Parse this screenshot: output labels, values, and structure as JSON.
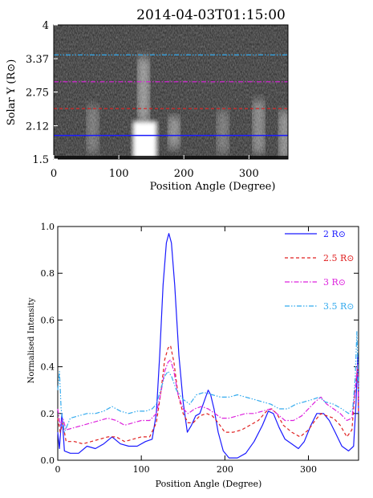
{
  "chart_data": [
    {
      "type": "heatmap",
      "title": "2014-04-03T01:15:00",
      "xlabel": "Position Angle (Degree)",
      "ylabel": "Solar Y (R⊙)",
      "xlim": [
        0,
        360
      ],
      "ylim": [
        1.5,
        4.0
      ],
      "xticks": [
        "0",
        "100",
        "200",
        "300"
      ],
      "yticks": [
        "1.5",
        "2.12",
        "2.75",
        "3.37",
        "4"
      ],
      "colormap": "grayscale",
      "overlay_lines": [
        {
          "y": 1.94,
          "color": "#1a1aff",
          "style": "solid"
        },
        {
          "y": 2.44,
          "color": "#e02020",
          "style": "dashed"
        },
        {
          "y": 2.94,
          "color": "#dd22dd",
          "style": "dash-dot"
        },
        {
          "y": 3.44,
          "color": "#33aaee",
          "style": "dash-dot-dot"
        }
      ],
      "bright_features": [
        {
          "angle": 140,
          "r_start": 1.5,
          "r_end": 2.2,
          "intensity": 1.0
        },
        {
          "angle": 138,
          "r_start": 2.2,
          "r_end": 3.4,
          "intensity": 0.55
        },
        {
          "angle": 185,
          "r_start": 1.7,
          "r_end": 2.3,
          "intensity": 0.5
        },
        {
          "angle": 260,
          "r_start": 1.6,
          "r_end": 2.4,
          "intensity": 0.35
        },
        {
          "angle": 315,
          "r_start": 1.6,
          "r_end": 2.6,
          "intensity": 0.45
        },
        {
          "angle": 60,
          "r_start": 1.6,
          "r_end": 2.5,
          "intensity": 0.35
        },
        {
          "angle": 355,
          "r_start": 1.5,
          "r_end": 2.4,
          "intensity": 0.5
        }
      ]
    },
    {
      "type": "line",
      "xlabel": "Position Angle (Degree)",
      "ylabel": "Normalised Intensity",
      "xlim": [
        0,
        360
      ],
      "ylim": [
        0,
        1.0
      ],
      "xticks": [
        "0",
        "100",
        "200",
        "300"
      ],
      "yticks": [
        "0.0",
        "0.2",
        "0.4",
        "0.6",
        "0.8",
        "1.0"
      ],
      "legend_position": "top-right",
      "series": [
        {
          "name": "2 R⊙",
          "color": "#1a1aff",
          "style": "solid",
          "points": [
            [
              0,
              0.12
            ],
            [
              2,
              0.05
            ],
            [
              5,
              0.2
            ],
            [
              8,
              0.04
            ],
            [
              15,
              0.03
            ],
            [
              25,
              0.03
            ],
            [
              35,
              0.06
            ],
            [
              45,
              0.05
            ],
            [
              55,
              0.07
            ],
            [
              65,
              0.1
            ],
            [
              75,
              0.07
            ],
            [
              85,
              0.06
            ],
            [
              95,
              0.06
            ],
            [
              105,
              0.08
            ],
            [
              113,
              0.09
            ],
            [
              118,
              0.2
            ],
            [
              122,
              0.45
            ],
            [
              126,
              0.75
            ],
            [
              130,
              0.93
            ],
            [
              133,
              0.97
            ],
            [
              136,
              0.93
            ],
            [
              140,
              0.75
            ],
            [
              145,
              0.45
            ],
            [
              150,
              0.25
            ],
            [
              155,
              0.12
            ],
            [
              160,
              0.15
            ],
            [
              165,
              0.19
            ],
            [
              170,
              0.2
            ],
            [
              175,
              0.25
            ],
            [
              180,
              0.3
            ],
            [
              183,
              0.28
            ],
            [
              187,
              0.22
            ],
            [
              192,
              0.12
            ],
            [
              198,
              0.04
            ],
            [
              205,
              0.01
            ],
            [
              215,
              0.01
            ],
            [
              225,
              0.03
            ],
            [
              235,
              0.08
            ],
            [
              245,
              0.15
            ],
            [
              252,
              0.21
            ],
            [
              258,
              0.2
            ],
            [
              265,
              0.14
            ],
            [
              272,
              0.09
            ],
            [
              280,
              0.07
            ],
            [
              288,
              0.05
            ],
            [
              295,
              0.08
            ],
            [
              303,
              0.15
            ],
            [
              310,
              0.2
            ],
            [
              318,
              0.2
            ],
            [
              325,
              0.17
            ],
            [
              332,
              0.12
            ],
            [
              340,
              0.06
            ],
            [
              348,
              0.04
            ],
            [
              354,
              0.06
            ],
            [
              357,
              0.25
            ],
            [
              359,
              0.45
            ],
            [
              360,
              0.2
            ]
          ]
        },
        {
          "name": "2.5 R⊙",
          "color": "#e02020",
          "style": "dashed",
          "points": [
            [
              0,
              0.18
            ],
            [
              3,
              0.12
            ],
            [
              6,
              0.16
            ],
            [
              10,
              0.08
            ],
            [
              20,
              0.08
            ],
            [
              30,
              0.07
            ],
            [
              40,
              0.08
            ],
            [
              50,
              0.09
            ],
            [
              60,
              0.1
            ],
            [
              70,
              0.1
            ],
            [
              80,
              0.08
            ],
            [
              90,
              0.09
            ],
            [
              100,
              0.1
            ],
            [
              110,
              0.1
            ],
            [
              118,
              0.16
            ],
            [
              123,
              0.28
            ],
            [
              128,
              0.43
            ],
            [
              132,
              0.48
            ],
            [
              135,
              0.49
            ],
            [
              139,
              0.42
            ],
            [
              144,
              0.28
            ],
            [
              150,
              0.2
            ],
            [
              156,
              0.16
            ],
            [
              162,
              0.16
            ],
            [
              170,
              0.19
            ],
            [
              178,
              0.2
            ],
            [
              185,
              0.19
            ],
            [
              192,
              0.16
            ],
            [
              200,
              0.12
            ],
            [
              210,
              0.12
            ],
            [
              220,
              0.13
            ],
            [
              230,
              0.15
            ],
            [
              240,
              0.17
            ],
            [
              250,
              0.21
            ],
            [
              256,
              0.22
            ],
            [
              262,
              0.2
            ],
            [
              270,
              0.15
            ],
            [
              280,
              0.12
            ],
            [
              290,
              0.1
            ],
            [
              300,
              0.13
            ],
            [
              308,
              0.17
            ],
            [
              315,
              0.2
            ],
            [
              322,
              0.19
            ],
            [
              330,
              0.18
            ],
            [
              338,
              0.15
            ],
            [
              346,
              0.1
            ],
            [
              352,
              0.13
            ],
            [
              356,
              0.3
            ],
            [
              359,
              0.4
            ],
            [
              360,
              0.2
            ]
          ]
        },
        {
          "name": "3 R⊙",
          "color": "#dd22dd",
          "style": "dash-dot",
          "points": [
            [
              0,
              0.22
            ],
            [
              3,
              0.15
            ],
            [
              6,
              0.18
            ],
            [
              10,
              0.13
            ],
            [
              20,
              0.14
            ],
            [
              30,
              0.15
            ],
            [
              40,
              0.16
            ],
            [
              50,
              0.17
            ],
            [
              60,
              0.18
            ],
            [
              70,
              0.17
            ],
            [
              80,
              0.15
            ],
            [
              90,
              0.16
            ],
            [
              100,
              0.17
            ],
            [
              110,
              0.17
            ],
            [
              118,
              0.2
            ],
            [
              123,
              0.28
            ],
            [
              128,
              0.38
            ],
            [
              132,
              0.42
            ],
            [
              135,
              0.43
            ],
            [
              139,
              0.38
            ],
            [
              144,
              0.28
            ],
            [
              150,
              0.22
            ],
            [
              156,
              0.2
            ],
            [
              164,
              0.22
            ],
            [
              172,
              0.23
            ],
            [
              180,
              0.22
            ],
            [
              188,
              0.2
            ],
            [
              196,
              0.18
            ],
            [
              205,
              0.18
            ],
            [
              215,
              0.19
            ],
            [
              225,
              0.2
            ],
            [
              235,
              0.2
            ],
            [
              245,
              0.21
            ],
            [
              255,
              0.22
            ],
            [
              262,
              0.2
            ],
            [
              272,
              0.17
            ],
            [
              282,
              0.17
            ],
            [
              292,
              0.19
            ],
            [
              300,
              0.22
            ],
            [
              308,
              0.25
            ],
            [
              315,
              0.27
            ],
            [
              322,
              0.24
            ],
            [
              330,
              0.22
            ],
            [
              338,
              0.2
            ],
            [
              346,
              0.17
            ],
            [
              352,
              0.18
            ],
            [
              356,
              0.3
            ],
            [
              359,
              0.42
            ],
            [
              360,
              0.25
            ]
          ]
        },
        {
          "name": "3.5 R⊙",
          "color": "#33aaee",
          "style": "dash-dot-dot",
          "points": [
            [
              0,
              0.3
            ],
            [
              2,
              0.38
            ],
            [
              4,
              0.22
            ],
            [
              8,
              0.12
            ],
            [
              15,
              0.18
            ],
            [
              25,
              0.19
            ],
            [
              35,
              0.2
            ],
            [
              45,
              0.2
            ],
            [
              55,
              0.21
            ],
            [
              65,
              0.23
            ],
            [
              75,
              0.21
            ],
            [
              85,
              0.2
            ],
            [
              95,
              0.21
            ],
            [
              105,
              0.21
            ],
            [
              113,
              0.22
            ],
            [
              118,
              0.24
            ],
            [
              123,
              0.3
            ],
            [
              128,
              0.36
            ],
            [
              132,
              0.38
            ],
            [
              136,
              0.36
            ],
            [
              142,
              0.3
            ],
            [
              150,
              0.26
            ],
            [
              158,
              0.24
            ],
            [
              166,
              0.28
            ],
            [
              175,
              0.29
            ],
            [
              185,
              0.28
            ],
            [
              195,
              0.27
            ],
            [
              205,
              0.27
            ],
            [
              215,
              0.28
            ],
            [
              225,
              0.27
            ],
            [
              235,
              0.26
            ],
            [
              245,
              0.25
            ],
            [
              255,
              0.24
            ],
            [
              265,
              0.22
            ],
            [
              275,
              0.22
            ],
            [
              285,
              0.24
            ],
            [
              295,
              0.25
            ],
            [
              305,
              0.26
            ],
            [
              313,
              0.27
            ],
            [
              320,
              0.25
            ],
            [
              330,
              0.24
            ],
            [
              340,
              0.22
            ],
            [
              348,
              0.2
            ],
            [
              353,
              0.22
            ],
            [
              356,
              0.35
            ],
            [
              358,
              0.55
            ],
            [
              360,
              0.3
            ]
          ]
        }
      ]
    }
  ]
}
